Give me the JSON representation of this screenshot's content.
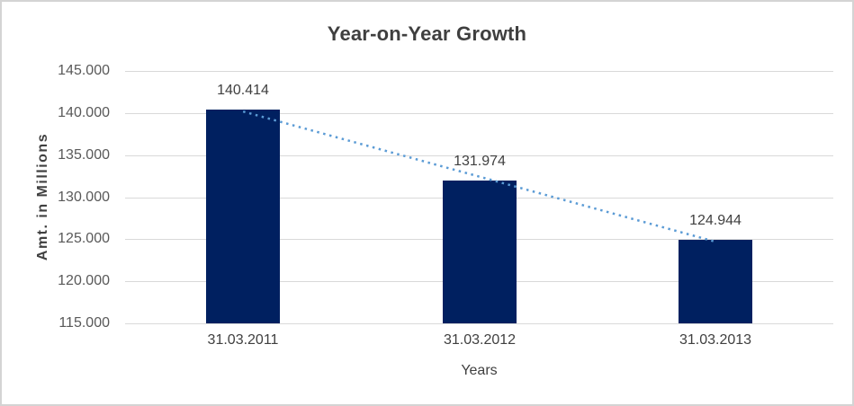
{
  "chart_data": {
    "type": "bar",
    "title": "Year-on-Year Growth",
    "xlabel": "Years",
    "ylabel": "Amt. in Millions",
    "categories": [
      "31.03.2011",
      "31.03.2012",
      "31.03.2013"
    ],
    "values": [
      140.414,
      131.974,
      124.944
    ],
    "data_labels": [
      "140.414",
      "131.974",
      "124.944"
    ],
    "y_ticks": [
      {
        "value": 145,
        "label": "145.000"
      },
      {
        "value": 140,
        "label": "140.000"
      },
      {
        "value": 135,
        "label": "135.000"
      },
      {
        "value": 130,
        "label": "130.000"
      },
      {
        "value": 125,
        "label": "125.000"
      },
      {
        "value": 120,
        "label": "120.000"
      },
      {
        "value": 115,
        "label": "115.000"
      }
    ],
    "ylim": [
      115,
      145
    ],
    "grid": true,
    "legend": "none",
    "trendline": {
      "type": "linear",
      "style": "dotted"
    },
    "colors": {
      "bar": "#002060",
      "trendline": "#5b9bd5",
      "gridline": "#d9d9d9",
      "title_text": "#3f3f3f",
      "tick_text": "#595959",
      "label_text": "#404040",
      "background": "#ffffff",
      "border": "#d4d4d4"
    }
  }
}
